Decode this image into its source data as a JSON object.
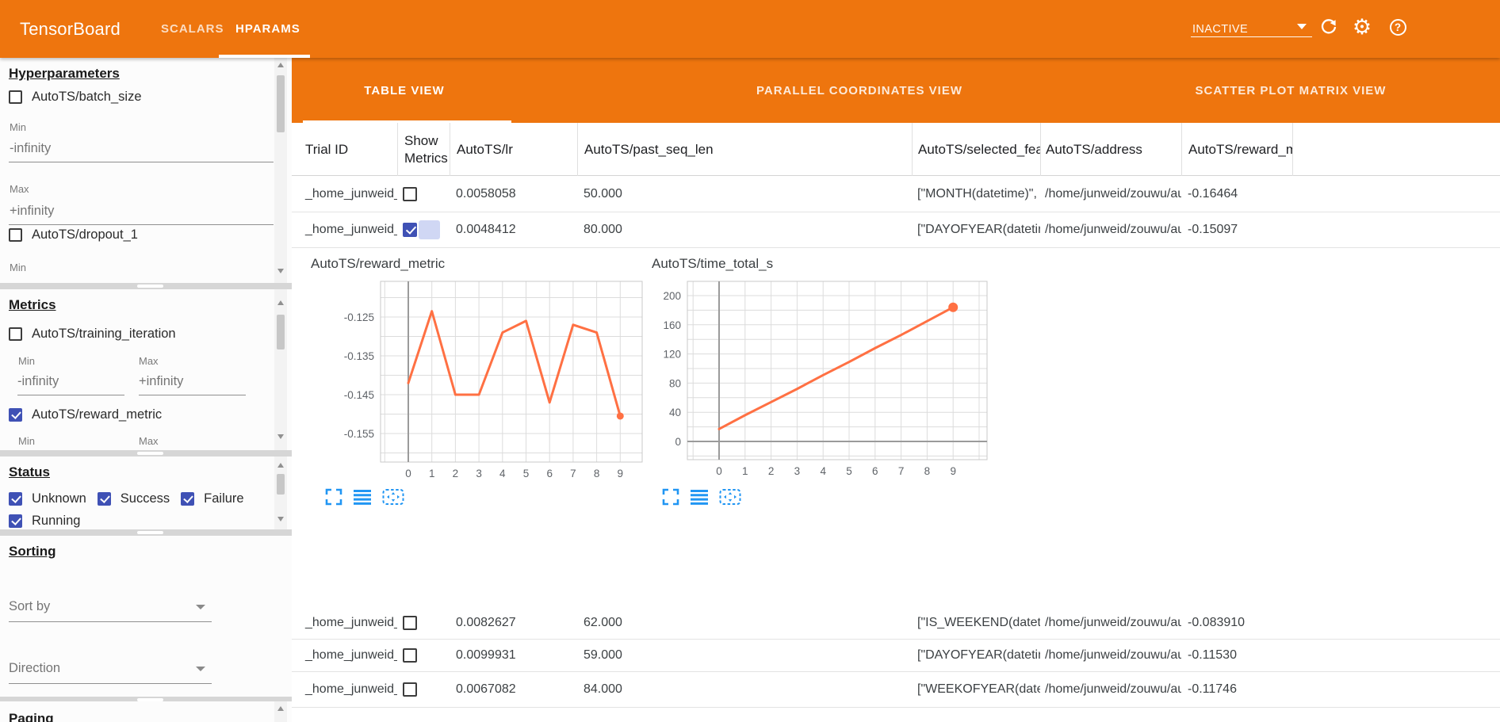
{
  "colors": {
    "topbar_orange": "#ee750e",
    "checkbox_blue": "#3f51b5",
    "chart_line_orange": "#ff7043",
    "tool_icon_blue": "#2196f3"
  },
  "topbar": {
    "logo": "TensorBoard",
    "nav_tabs": [
      {
        "label": "SCALARS",
        "active": false
      },
      {
        "label": "HPARAMS",
        "active": true
      }
    ],
    "run_mode": {
      "value": "INACTIVE"
    }
  },
  "sidebar": {
    "hyperparameters": {
      "heading": "Hyperparameters",
      "param_batch_size": {
        "label": "AutoTS/batch_size",
        "checked": false
      },
      "min_label": "Min",
      "min_value": "-infinity",
      "max_label": "Max",
      "max_value": "+infinity",
      "param_dropout": {
        "label": "AutoTS/dropout_1",
        "checked": false,
        "min_label": "Min"
      }
    },
    "metrics": {
      "heading": "Metrics",
      "metric_training_iteration": {
        "label": "AutoTS/training_iteration",
        "checked": false,
        "min_label": "Min",
        "max_label": "Max",
        "min_value": "-infinity",
        "max_value": "+infinity"
      },
      "metric_reward": {
        "label": "AutoTS/reward_metric",
        "checked": true,
        "min_label": "Min",
        "max_label": "Max"
      }
    },
    "status": {
      "heading": "Status",
      "options": [
        {
          "label": "Unknown",
          "checked": true
        },
        {
          "label": "Success",
          "checked": true
        },
        {
          "label": "Failure",
          "checked": true
        },
        {
          "label": "Running",
          "checked": true
        }
      ]
    },
    "sorting": {
      "heading": "Sorting",
      "sort_by_placeholder": "Sort by",
      "direction_placeholder": "Direction"
    },
    "paging": {
      "heading": "Paging"
    }
  },
  "main": {
    "view_tabs": [
      {
        "label": "TABLE VIEW",
        "active": true
      },
      {
        "label": "PARALLEL COORDINATES VIEW",
        "active": false
      },
      {
        "label": "SCATTER PLOT MATRIX VIEW",
        "active": false
      }
    ],
    "table": {
      "columns": [
        "Trial ID",
        "Show Metrics",
        "AutoTS/lr",
        "AutoTS/past_seq_len",
        "AutoTS/selected_features",
        "AutoTS/address",
        "AutoTS/reward_metric"
      ],
      "rows": [
        {
          "trial_id": "_home_junweid_z…",
          "show_metrics": false,
          "lr": "0.0058058",
          "past_seq_len": "50.000",
          "selected_features": "[\"MONTH(datetime)\", \"I…",
          "address": "/home/junweid/zouwu/aut…",
          "reward_metric": "-0.16464"
        },
        {
          "trial_id": "_home_junweid_z…",
          "show_metrics": true,
          "lr": "0.0048412",
          "past_seq_len": "80.000",
          "selected_features": "[\"DAYOFYEAR(datetime…",
          "address": "/home/junweid/zouwu/aut…",
          "reward_metric": "-0.15097"
        },
        {
          "trial_id": "_home_junweid_z…",
          "show_metrics": false,
          "lr": "0.0082627",
          "past_seq_len": "62.000",
          "selected_features": "[\"IS_WEEKEND(datetim…",
          "address": "/home/junweid/zouwu/aut…",
          "reward_metric": "-0.083910"
        },
        {
          "trial_id": "_home_junweid_z…",
          "show_metrics": false,
          "lr": "0.0099931",
          "past_seq_len": "59.000",
          "selected_features": "[\"DAYOFYEAR(datetime…",
          "address": "/home/junweid/zouwu/aut…",
          "reward_metric": "-0.11530"
        },
        {
          "trial_id": "_home_junweid_z…",
          "show_metrics": false,
          "lr": "0.0067082",
          "past_seq_len": "84.000",
          "selected_features": "[\"WEEKOFYEAR(dateti…",
          "address": "/home/junweid/zouwu/aut…",
          "reward_metric": "-0.11746"
        }
      ]
    }
  },
  "chart_data": [
    {
      "type": "line",
      "title": "AutoTS/reward_metric",
      "x": [
        0,
        1,
        2,
        3,
        4,
        5,
        6,
        7,
        8,
        9
      ],
      "values": [
        -0.142,
        -0.1235,
        -0.145,
        -0.145,
        -0.129,
        -0.126,
        -0.147,
        -0.127,
        -0.129,
        -0.1505
      ],
      "x_tick_labels": [
        "0",
        "1",
        "2",
        "3",
        "4",
        "5",
        "6",
        "7",
        "8",
        "9"
      ],
      "y_ticks": [
        -0.125,
        -0.135,
        -0.145,
        -0.155
      ],
      "y_tick_labels": [
        "-0.125",
        "-0.135",
        "-0.145",
        "-0.155"
      ],
      "ylim": [
        -0.162,
        -0.1155
      ],
      "grid": true,
      "legend": "none",
      "line_color": "#ff7043",
      "end_point_marker": true
    },
    {
      "type": "line",
      "title": "AutoTS/time_total_s",
      "x": [
        0,
        1,
        2,
        3,
        4,
        5,
        6,
        7,
        8,
        9
      ],
      "values": [
        17,
        36,
        54,
        72,
        91,
        109,
        128,
        146,
        165,
        184
      ],
      "x_tick_labels": [
        "0",
        "1",
        "2",
        "3",
        "4",
        "5",
        "6",
        "7",
        "8",
        "9"
      ],
      "y_ticks": [
        0,
        40,
        80,
        120,
        160,
        200
      ],
      "y_tick_labels": [
        "0",
        "40",
        "80",
        "120",
        "160",
        "200"
      ],
      "ylim": [
        -12,
        215
      ],
      "grid": true,
      "legend": "none",
      "line_color": "#ff7043",
      "end_point_marker": true
    }
  ]
}
